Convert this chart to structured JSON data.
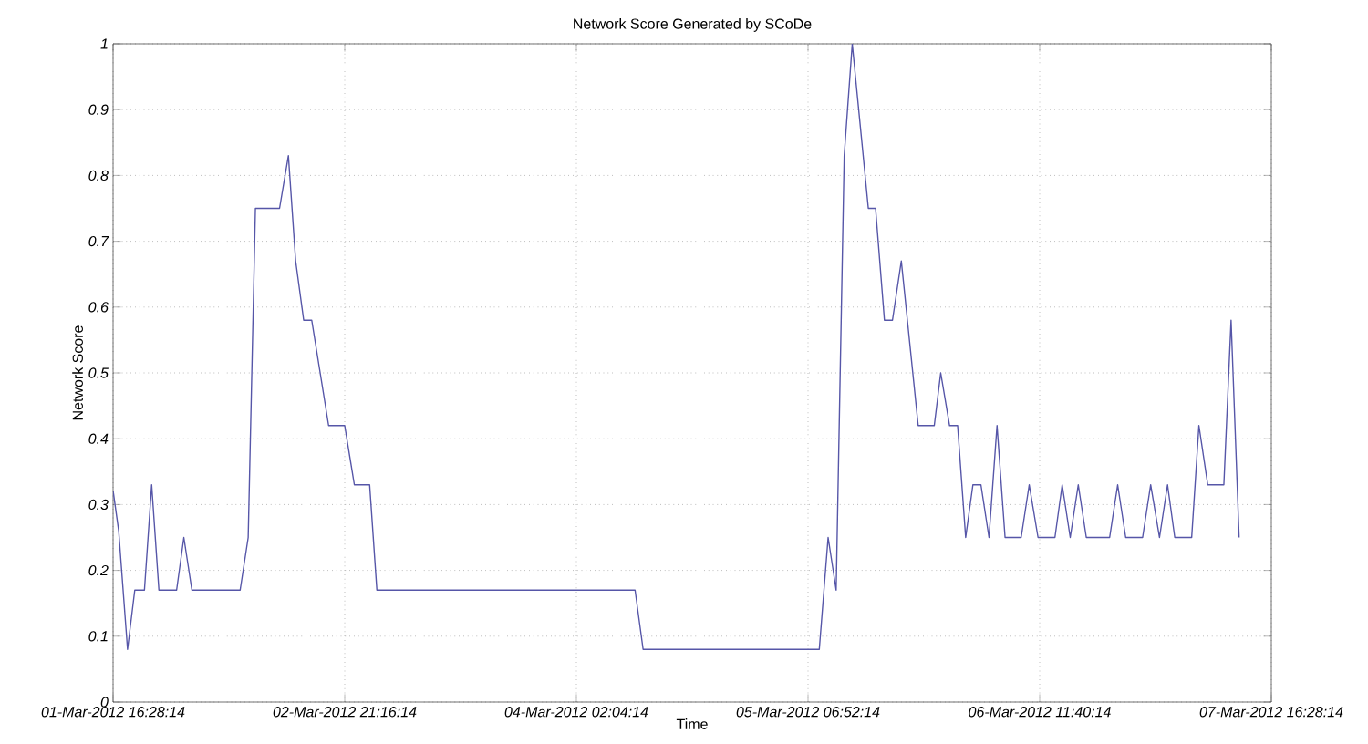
{
  "chart_data": {
    "type": "line",
    "title": "Network Score Generated by SCoDe",
    "xlabel": "Time",
    "ylabel": "Network Score",
    "x": [
      "2012-03-01T16:29",
      "2012-03-01T17:10",
      "2012-03-01T18:16",
      "2012-03-01T19:10",
      "2012-03-01T20:22",
      "2012-03-01T21:16",
      "2012-03-01T22:10",
      "2012-03-02T00:22",
      "2012-03-02T01:16",
      "2012-03-02T02:16",
      "2012-03-02T08:16",
      "2012-03-02T09:16",
      "2012-03-02T10:10",
      "2012-03-02T13:10",
      "2012-03-02T14:16",
      "2012-03-02T15:10",
      "2012-03-02T16:10",
      "2012-03-02T17:10",
      "2012-03-02T19:16",
      "2012-03-02T21:16",
      "2012-03-02T22:28",
      "2012-03-03T00:22",
      "2012-03-03T01:16",
      "2012-03-04T09:22",
      "2012-03-04T10:22",
      "2012-03-05T08:16",
      "2012-03-05T09:22",
      "2012-03-05T10:22",
      "2012-03-05T11:22",
      "2012-03-05T12:22",
      "2012-03-05T14:22",
      "2012-03-05T15:16",
      "2012-03-05T16:22",
      "2012-03-05T17:22",
      "2012-03-05T18:28",
      "2012-03-05T20:34",
      "2012-03-05T22:34",
      "2012-03-05T23:22",
      "2012-03-06T00:28",
      "2012-03-06T01:28",
      "2012-03-06T02:28",
      "2012-03-06T03:22",
      "2012-03-06T04:22",
      "2012-03-06T05:22",
      "2012-03-06T06:22",
      "2012-03-06T07:22",
      "2012-03-06T09:22",
      "2012-03-06T10:22",
      "2012-03-06T11:28",
      "2012-03-06T13:34",
      "2012-03-06T14:28",
      "2012-03-06T15:28",
      "2012-03-06T16:28",
      "2012-03-06T17:28",
      "2012-03-06T20:22",
      "2012-03-06T21:22",
      "2012-03-06T22:22",
      "2012-03-07T00:28",
      "2012-03-07T01:28",
      "2012-03-07T02:34",
      "2012-03-07T03:34",
      "2012-03-07T04:28",
      "2012-03-07T06:34",
      "2012-03-07T07:28",
      "2012-03-07T08:34",
      "2012-03-07T10:34",
      "2012-03-07T11:28",
      "2012-03-07T12:28"
    ],
    "series": [
      {
        "color": "#5656a8",
        "values": [
          0.32,
          0.26,
          0.08,
          0.17,
          0.17,
          0.33,
          0.17,
          0.17,
          0.25,
          0.17,
          0.17,
          0.25,
          0.75,
          0.75,
          0.83,
          0.67,
          0.58,
          0.58,
          0.42,
          0.42,
          0.33,
          0.33,
          0.17,
          0.17,
          0.08,
          0.08,
          0.25,
          0.17,
          0.83,
          1,
          0.75,
          0.75,
          0.58,
          0.58,
          0.67,
          0.42,
          0.42,
          0.5,
          0.42,
          0.42,
          0.25,
          0.33,
          0.33,
          0.25,
          0.42,
          0.25,
          0.25,
          0.33,
          0.25,
          0.25,
          0.33,
          0.25,
          0.33,
          0.25,
          0.25,
          0.33,
          0.25,
          0.25,
          0.33,
          0.25,
          0.33,
          0.25,
          0.25,
          0.42,
          0.33,
          0.33,
          0.58,
          0.25
        ]
      }
    ],
    "xlim": [
      "2012-03-01T16:28:14",
      "2012-03-07T16:28:14"
    ],
    "ylim": [
      0,
      1
    ],
    "xticks": [
      {
        "value": "2012-03-01T16:28:14",
        "label": "01-Mar-2012 16:28:14"
      },
      {
        "value": "2012-03-02T21:16:14",
        "label": "02-Mar-2012 21:16:14"
      },
      {
        "value": "2012-03-04T02:04:14",
        "label": "04-Mar-2012 02:04:14"
      },
      {
        "value": "2012-03-05T06:52:14",
        "label": "05-Mar-2012 06:52:14"
      },
      {
        "value": "2012-03-06T11:40:14",
        "label": "06-Mar-2012 11:40:14"
      },
      {
        "value": "2012-03-07T16:28:14",
        "label": "07-Mar-2012 16:28:14"
      }
    ],
    "yticks": [
      0,
      0.1,
      0.2,
      0.3,
      0.4,
      0.5,
      0.6,
      0.7,
      0.8,
      0.9,
      1
    ],
    "grid": true,
    "marker": "none",
    "line_style": "solid"
  }
}
